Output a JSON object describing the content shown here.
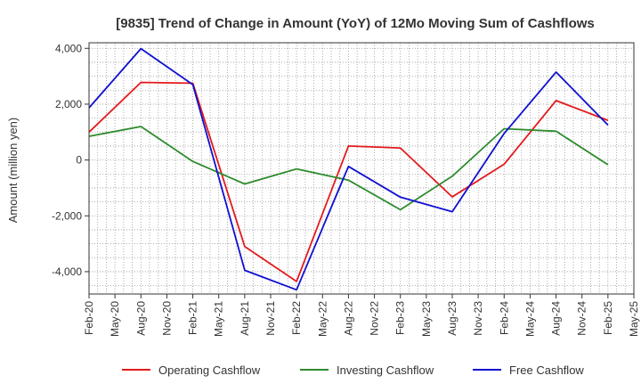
{
  "chart_data": {
    "type": "line",
    "title": "[9835]  Trend of Change in Amount (YoY) of 12Mo Moving Sum of Cashflows",
    "xlabel": "",
    "ylabel": "Amount (million yen)",
    "ylim": [
      -4800,
      4200
    ],
    "yticks": [
      4000,
      2000,
      0,
      -2000,
      -4000
    ],
    "ytick_labels": [
      "4,000",
      "2,000",
      "0",
      "-2,000",
      "-4,000"
    ],
    "x_labels": [
      "Feb-20",
      "May-20",
      "Aug-20",
      "Nov-20",
      "Feb-21",
      "May-21",
      "Aug-21",
      "Nov-21",
      "Feb-22",
      "May-22",
      "Aug-22",
      "Nov-22",
      "Feb-23",
      "May-23",
      "Aug-23",
      "Nov-23",
      "Feb-24",
      "May-24",
      "Aug-24",
      "Nov-24",
      "Feb-25",
      "May-25"
    ],
    "categories": [
      "Feb-20",
      "Aug-20",
      "Feb-21",
      "Aug-21",
      "Feb-22",
      "Aug-22",
      "Feb-23",
      "Aug-23",
      "Feb-24",
      "Aug-24",
      "Feb-25"
    ],
    "series": [
      {
        "name": "Operating Cashflow",
        "color": "#e31a1c",
        "values": [
          1000,
          2780,
          2750,
          -3100,
          -4350,
          500,
          430,
          -1320,
          -150,
          2130,
          1420
        ]
      },
      {
        "name": "Investing Cashflow",
        "color": "#2e8b2e",
        "values": [
          850,
          1200,
          -50,
          -860,
          -320,
          -720,
          -1780,
          -580,
          1120,
          1030,
          -170
        ]
      },
      {
        "name": "Free Cashflow",
        "color": "#1010d0",
        "values": [
          1870,
          3990,
          2700,
          -3950,
          -4650,
          -230,
          -1330,
          -1850,
          950,
          3150,
          1250
        ]
      }
    ],
    "grid": true,
    "legend": "bottom"
  }
}
